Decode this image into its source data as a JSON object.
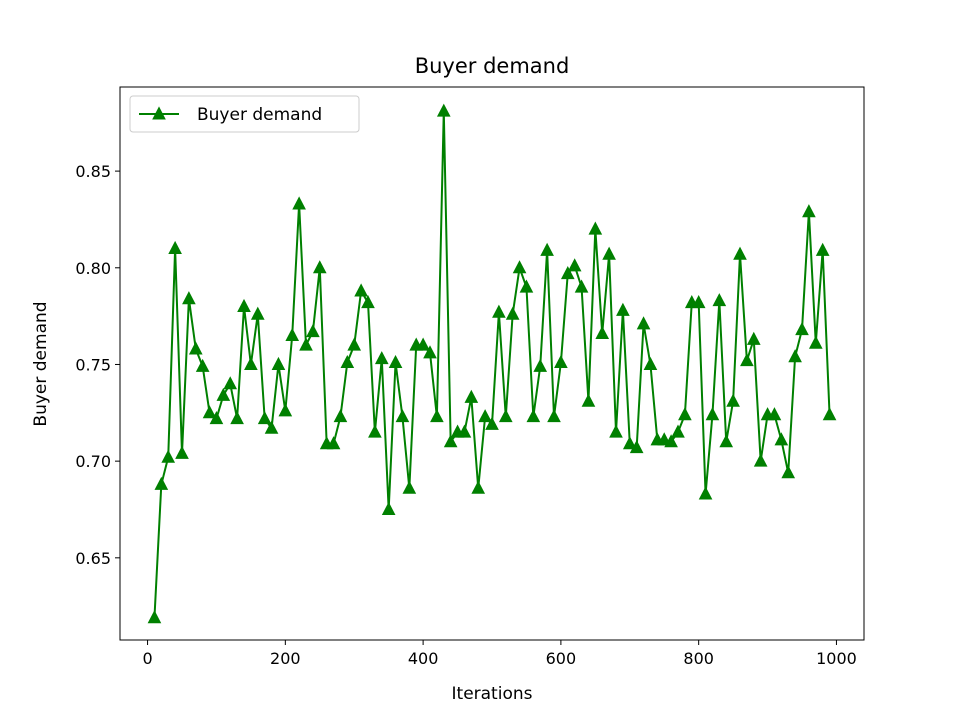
{
  "chart_data": {
    "type": "line",
    "title": "Buyer demand",
    "xlabel": "Iterations",
    "ylabel": "Buyer demand",
    "xlim": [
      -40,
      1040
    ],
    "ylim": [
      0.6075,
      0.8935
    ],
    "xticks": [
      0,
      200,
      400,
      600,
      800,
      1000
    ],
    "yticks": [
      0.65,
      0.7,
      0.75,
      0.8,
      0.85
    ],
    "xtick_labels": [
      "0",
      "200",
      "400",
      "600",
      "800",
      "1000"
    ],
    "ytick_labels": [
      "0.65",
      "0.70",
      "0.75",
      "0.80",
      "0.85"
    ],
    "grid": false,
    "legend_position": "top-left",
    "series": [
      {
        "name": "Buyer demand",
        "color": "#008000",
        "marker": "triangle-up",
        "x": [
          10,
          20,
          30,
          40,
          50,
          60,
          70,
          80,
          90,
          100,
          110,
          120,
          130,
          140,
          150,
          160,
          170,
          180,
          190,
          200,
          210,
          220,
          230,
          240,
          250,
          260,
          270,
          280,
          290,
          300,
          310,
          320,
          330,
          340,
          350,
          360,
          370,
          380,
          390,
          400,
          410,
          420,
          430,
          440,
          450,
          460,
          470,
          480,
          490,
          500,
          510,
          520,
          530,
          540,
          550,
          560,
          570,
          580,
          590,
          600,
          610,
          620,
          630,
          640,
          650,
          660,
          670,
          680,
          690,
          700,
          710,
          720,
          730,
          740,
          750,
          760,
          770,
          780,
          790,
          800,
          810,
          820,
          830,
          840,
          850,
          860,
          870,
          880,
          890,
          900,
          910,
          920,
          930,
          940,
          950,
          960,
          970,
          980,
          990
        ],
        "y": [
          0.619,
          0.688,
          0.702,
          0.81,
          0.704,
          0.784,
          0.758,
          0.749,
          0.725,
          0.722,
          0.734,
          0.74,
          0.722,
          0.78,
          0.75,
          0.776,
          0.722,
          0.717,
          0.75,
          0.726,
          0.765,
          0.833,
          0.76,
          0.767,
          0.8,
          0.709,
          0.709,
          0.723,
          0.751,
          0.76,
          0.788,
          0.782,
          0.715,
          0.753,
          0.675,
          0.751,
          0.723,
          0.686,
          0.76,
          0.76,
          0.756,
          0.723,
          0.881,
          0.71,
          0.715,
          0.715,
          0.733,
          0.686,
          0.723,
          0.719,
          0.777,
          0.723,
          0.776,
          0.8,
          0.79,
          0.723,
          0.749,
          0.809,
          0.723,
          0.751,
          0.797,
          0.801,
          0.79,
          0.731,
          0.82,
          0.766,
          0.807,
          0.715,
          0.778,
          0.709,
          0.707,
          0.771,
          0.75,
          0.711,
          0.711,
          0.71,
          0.715,
          0.724,
          0.782,
          0.782,
          0.683,
          0.724,
          0.783,
          0.71,
          0.731,
          0.807,
          0.752,
          0.763,
          0.7,
          0.724,
          0.724,
          0.711,
          0.694,
          0.754,
          0.768,
          0.829,
          0.761,
          0.809,
          0.724
        ]
      }
    ]
  }
}
